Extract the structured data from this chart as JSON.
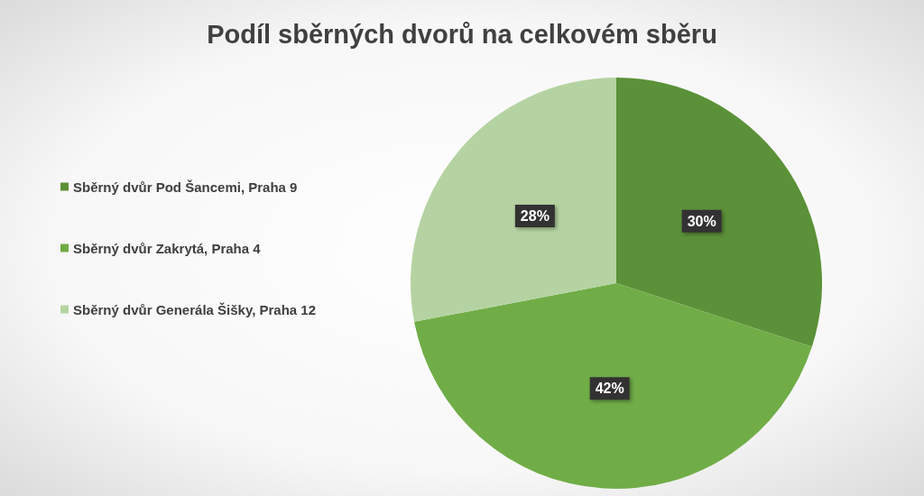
{
  "chart_data": {
    "type": "pie",
    "title": "Podíl sběrných dvorů na celkovém sběru",
    "categories": [
      "Sběrný dvůr Pod Šancemi, Praha 9",
      "Sběrný dvůr Zakrytá, Praha 4",
      "Sběrný dvůr Generála Šišky, Praha 12"
    ],
    "values": [
      30,
      42,
      28
    ],
    "colors": [
      "#5b9138",
      "#70ad47",
      "#b5d3a2"
    ],
    "value_labels": [
      "30%",
      "42%",
      "28%"
    ],
    "legend": "left"
  }
}
